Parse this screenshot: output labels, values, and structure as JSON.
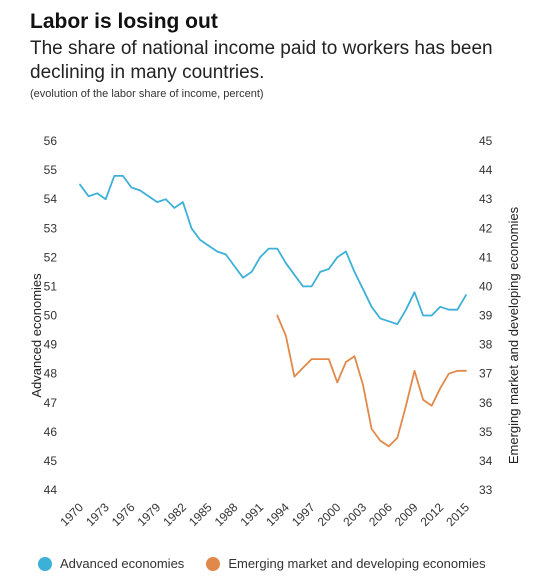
{
  "header": {
    "title": "Labor is losing out",
    "subtitle": "The share of national income paid to workers has been declining in many countries.",
    "note": "(evolution of the labor share of income, percent)"
  },
  "legend": {
    "items": [
      {
        "label": "Advanced economies",
        "color": "#3db0d8"
      },
      {
        "label": "Emerging market and developing economies",
        "color": "#e0894a"
      }
    ]
  },
  "chart_data": {
    "type": "line",
    "title": "Labor is losing out",
    "subtitle": "The share of national income paid to workers has been declining in many countries.",
    "x_tick_labels": [
      "1970",
      "1973",
      "1976",
      "1979",
      "1982",
      "1985",
      "1988",
      "1991",
      "1994",
      "1997",
      "2000",
      "2003",
      "2006",
      "2009",
      "2012",
      "2015"
    ],
    "xlim": [
      1970,
      2015
    ],
    "left_axis": {
      "label": "Advanced economies",
      "ylim": [
        44,
        56
      ],
      "ticks": [
        "44",
        "45",
        "46",
        "47",
        "48",
        "49",
        "50",
        "51",
        "52",
        "53",
        "54",
        "55",
        "56"
      ]
    },
    "right_axis": {
      "label": "Emerging market and developing economies",
      "ylim": [
        33,
        45
      ],
      "ticks": [
        "33",
        "34",
        "35",
        "36",
        "37",
        "38",
        "39",
        "40",
        "41",
        "42",
        "43",
        "44",
        "45"
      ]
    },
    "grid": false,
    "legend_position": "bottom",
    "series": [
      {
        "name": "Advanced economies",
        "axis": "left",
        "color": "#3db0d8",
        "x": [
          1970,
          1971,
          1972,
          1973,
          1974,
          1975,
          1976,
          1977,
          1978,
          1979,
          1980,
          1981,
          1982,
          1983,
          1984,
          1985,
          1986,
          1987,
          1988,
          1989,
          1990,
          1991,
          1992,
          1993,
          1994,
          1995,
          1996,
          1997,
          1998,
          1999,
          2000,
          2001,
          2002,
          2003,
          2004,
          2005,
          2006,
          2007,
          2008,
          2009,
          2010,
          2011,
          2012,
          2013,
          2014,
          2015
        ],
        "values": [
          54.5,
          54.1,
          54.2,
          54.0,
          54.8,
          54.8,
          54.4,
          54.3,
          54.1,
          53.9,
          54.0,
          53.7,
          53.9,
          53.0,
          52.6,
          52.4,
          52.2,
          52.1,
          51.7,
          51.3,
          51.5,
          52.0,
          52.3,
          52.3,
          51.8,
          51.4,
          51.0,
          51.0,
          51.5,
          51.6,
          52.0,
          52.2,
          51.5,
          50.9,
          50.3,
          49.9,
          49.8,
          49.7,
          50.2,
          50.8,
          50.0,
          50.0,
          50.3,
          50.2,
          50.2,
          50.7
        ]
      },
      {
        "name": "Emerging market and developing economies",
        "axis": "right",
        "color": "#e0894a",
        "x": [
          1993,
          1994,
          1995,
          1996,
          1997,
          1998,
          1999,
          2000,
          2001,
          2002,
          2003,
          2004,
          2005,
          2006,
          2007,
          2008,
          2009,
          2010,
          2011,
          2012,
          2013,
          2014,
          2015
        ],
        "values": [
          39.0,
          38.3,
          36.9,
          37.2,
          37.5,
          37.5,
          37.5,
          36.7,
          37.4,
          37.6,
          36.6,
          35.1,
          34.7,
          34.5,
          34.8,
          35.9,
          37.1,
          36.1,
          35.9,
          36.5,
          37.0,
          37.1,
          37.1
        ]
      }
    ]
  }
}
